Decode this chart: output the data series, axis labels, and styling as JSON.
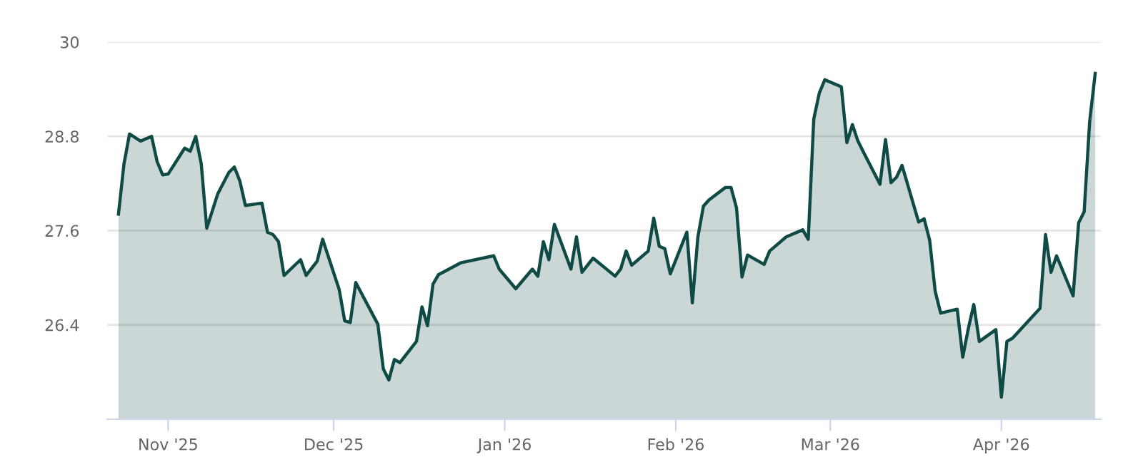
{
  "chart_data": {
    "type": "area",
    "x": [
      "2025-10-23",
      "2025-10-24",
      "2025-10-25",
      "2025-10-27",
      "2025-10-29",
      "2025-10-30",
      "2025-10-31",
      "2025-11-01",
      "2025-11-04",
      "2025-11-05",
      "2025-11-06",
      "2025-11-07",
      "2025-11-08",
      "2025-11-10",
      "2025-11-12",
      "2025-11-13",
      "2025-11-14",
      "2025-11-15",
      "2025-11-18",
      "2025-11-19",
      "2025-11-20",
      "2025-11-21",
      "2025-11-22",
      "2025-11-25",
      "2025-11-26",
      "2025-11-28",
      "2025-11-29",
      "2025-12-02",
      "2025-12-03",
      "2025-12-04",
      "2025-12-05",
      "2025-12-09",
      "2025-12-10",
      "2025-12-11",
      "2025-12-12",
      "2025-12-13",
      "2025-12-16",
      "2025-12-17",
      "2025-12-18",
      "2025-12-19",
      "2025-12-20",
      "2025-12-24",
      "2025-12-30",
      "2025-12-31",
      "2026-01-03",
      "2026-01-06",
      "2026-01-07",
      "2026-01-08",
      "2026-01-09",
      "2026-01-10",
      "2026-01-13",
      "2026-01-14",
      "2026-01-15",
      "2026-01-17",
      "2026-01-21",
      "2026-01-22",
      "2026-01-23",
      "2026-01-24",
      "2026-01-27",
      "2026-01-28",
      "2026-01-29",
      "2026-01-30",
      "2026-01-31",
      "2026-02-03",
      "2026-02-04",
      "2026-02-05",
      "2026-02-06",
      "2026-02-07",
      "2026-02-10",
      "2026-02-11",
      "2026-02-12",
      "2026-02-13",
      "2026-02-14",
      "2026-02-17",
      "2026-02-18",
      "2026-02-21",
      "2026-02-24",
      "2026-02-25",
      "2026-02-26",
      "2026-02-27",
      "2026-02-28",
      "2026-03-03",
      "2026-03-04",
      "2026-03-05",
      "2026-03-06",
      "2026-03-07",
      "2026-03-10",
      "2026-03-11",
      "2026-03-12",
      "2026-03-13",
      "2026-03-14",
      "2026-03-17",
      "2026-03-18",
      "2026-03-19",
      "2026-03-20",
      "2026-03-21",
      "2026-03-24",
      "2026-03-25",
      "2026-03-26",
      "2026-03-27",
      "2026-03-28",
      "2026-03-31",
      "2026-04-01",
      "2026-04-02",
      "2026-04-03",
      "2026-04-08",
      "2026-04-09",
      "2026-04-10",
      "2026-04-11",
      "2026-04-14",
      "2026-04-15",
      "2026-04-16",
      "2026-04-17",
      "2026-04-18"
    ],
    "series": [
      {
        "color": "#0f4a45",
        "values": [
          27.81,
          28.45,
          28.83,
          28.74,
          28.8,
          28.48,
          28.31,
          28.32,
          28.65,
          28.61,
          28.8,
          28.45,
          27.63,
          28.07,
          28.34,
          28.41,
          28.23,
          27.92,
          27.95,
          27.58,
          27.55,
          27.46,
          27.03,
          27.23,
          27.03,
          27.21,
          27.49,
          26.85,
          26.45,
          26.43,
          26.94,
          26.41,
          25.84,
          25.7,
          25.96,
          25.92,
          26.19,
          26.63,
          26.39,
          26.92,
          27.04,
          27.19,
          27.28,
          27.11,
          26.86,
          27.11,
          27.02,
          27.46,
          27.23,
          27.68,
          27.11,
          27.52,
          27.07,
          27.25,
          27.02,
          27.11,
          27.34,
          27.16,
          27.34,
          27.76,
          27.4,
          27.37,
          27.05,
          27.58,
          26.68,
          27.52,
          27.91,
          27.99,
          28.15,
          28.15,
          27.89,
          27.01,
          27.29,
          27.17,
          27.34,
          27.52,
          27.61,
          27.49,
          29.02,
          29.35,
          29.52,
          29.43,
          28.72,
          28.95,
          28.74,
          28.6,
          28.19,
          28.76,
          28.21,
          28.28,
          28.43,
          27.71,
          27.75,
          27.48,
          26.83,
          26.55,
          26.6,
          25.99,
          26.35,
          26.66,
          26.19,
          26.34,
          25.48,
          26.19,
          26.23,
          26.61,
          27.55,
          27.07,
          27.28,
          26.77,
          27.7,
          27.84,
          28.99,
          29.6
        ]
      }
    ],
    "xlim": [
      "2025-10-21",
      "2026-04-19"
    ],
    "xticks": [
      {
        "value": "2025-11-01",
        "label": "Nov '25"
      },
      {
        "value": "2025-12-01",
        "label": "Dec '25"
      },
      {
        "value": "2026-01-01",
        "label": "Jan '26"
      },
      {
        "value": "2026-02-01",
        "label": "Feb '26"
      },
      {
        "value": "2026-03-01",
        "label": "Mar '26"
      },
      {
        "value": "2026-04-01",
        "label": "Apr '26"
      }
    ],
    "ylim": [
      25.2,
      30
    ],
    "yticks": [
      26.4,
      27.6,
      28.8,
      30
    ],
    "grid": "y",
    "legend": false,
    "marker": "none",
    "line_style": "solid"
  }
}
